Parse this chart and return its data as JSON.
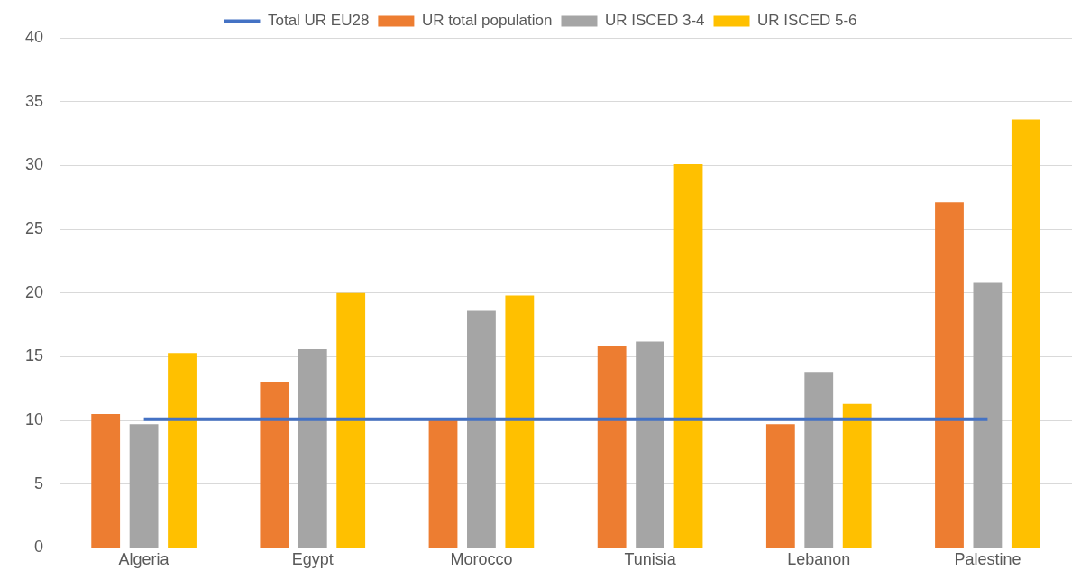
{
  "chart_data": {
    "type": "bar",
    "categories": [
      "Algeria",
      "Egypt",
      "Morocco",
      "Tunisia",
      "Lebanon",
      "Palestine"
    ],
    "series": [
      {
        "name": "UR total population",
        "color": "#ed7d31",
        "values": [
          10.5,
          13.0,
          10.0,
          15.8,
          9.7,
          27.1
        ]
      },
      {
        "name": "UR ISCED 3-4",
        "color": "#a5a5a5",
        "values": [
          9.7,
          15.6,
          18.6,
          16.2,
          13.8,
          20.8
        ]
      },
      {
        "name": "UR ISCED 5-6",
        "color": "#ffc000",
        "values": [
          15.3,
          20.0,
          19.8,
          30.1,
          11.3,
          33.6
        ]
      },
      {
        "name": "Total UR EU28",
        "color": "#4472c4",
        "type": "line",
        "values": [
          10.1,
          10.1,
          10.1,
          10.1,
          10.1,
          10.1
        ]
      }
    ],
    "ylim": [
      0,
      40
    ],
    "yticks": [
      0,
      5,
      10,
      15,
      20,
      25,
      30,
      35,
      40
    ],
    "grid": "y",
    "legend": "top",
    "marker": "none",
    "line_style": "solid"
  }
}
